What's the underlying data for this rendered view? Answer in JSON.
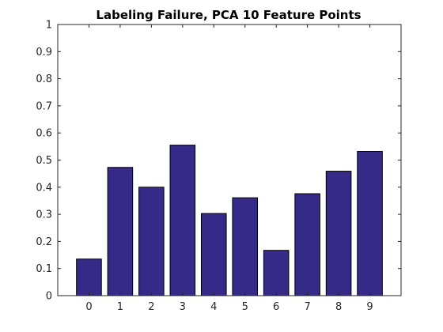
{
  "chart_data": {
    "type": "bar",
    "title": "Labeling Failure, PCA 10 Feature Points",
    "xlabel": "",
    "ylabel": "",
    "categories": [
      "0",
      "1",
      "2",
      "3",
      "4",
      "5",
      "6",
      "7",
      "8",
      "9"
    ],
    "values": [
      0.135,
      0.473,
      0.4,
      0.555,
      0.303,
      0.361,
      0.167,
      0.376,
      0.459,
      0.532
    ],
    "ylim": [
      0,
      1
    ],
    "yticks": [
      "0",
      "0.1",
      "0.2",
      "0.3",
      "0.4",
      "0.5",
      "0.6",
      "0.7",
      "0.8",
      "0.9",
      "1"
    ],
    "bar_color": "#352a87",
    "grid": false,
    "legend": "none"
  }
}
